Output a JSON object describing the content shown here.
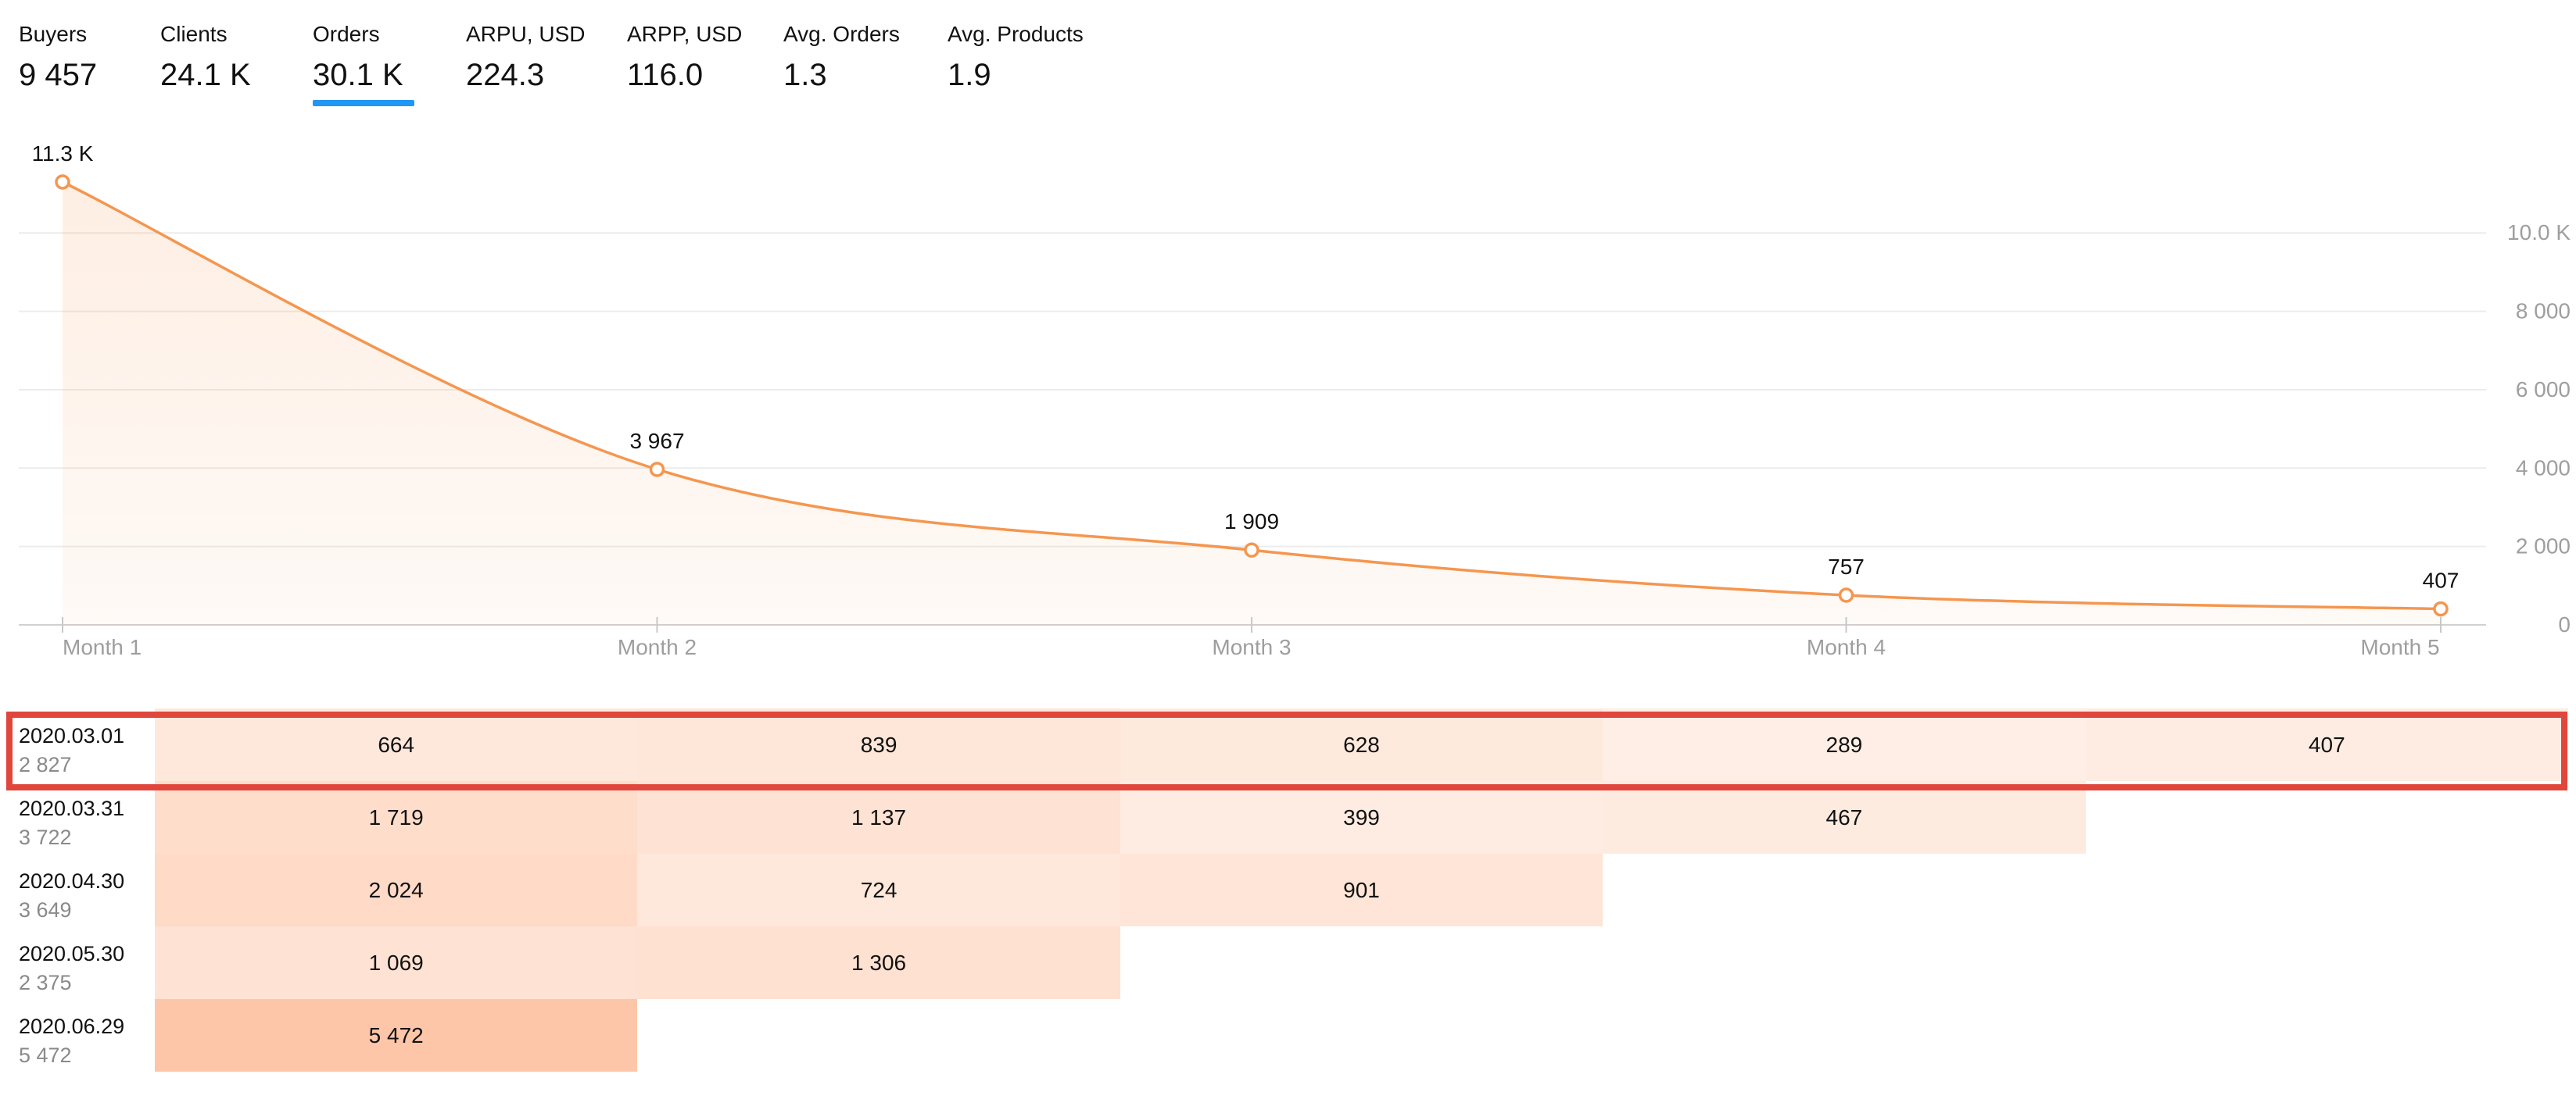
{
  "metrics": [
    {
      "label": "Buyers",
      "value": "9 457",
      "active": false
    },
    {
      "label": "Clients",
      "value": "24.1 K",
      "active": false
    },
    {
      "label": "Orders",
      "value": "30.1 K",
      "active": true
    },
    {
      "label": "ARPU, USD",
      "value": "224.3",
      "active": false
    },
    {
      "label": "ARPP, USD",
      "value": "116.0",
      "active": false
    },
    {
      "label": "Avg. Orders",
      "value": "1.3",
      "active": false
    },
    {
      "label": "Avg. Products",
      "value": "1.9",
      "active": false
    }
  ],
  "chart_data": {
    "type": "area",
    "categories": [
      "Month 1",
      "Month 2",
      "Month 3",
      "Month 4",
      "Month 5"
    ],
    "series": [
      {
        "values": [
          11300,
          3967,
          1909,
          757,
          407
        ],
        "labels": [
          "11.3 K",
          "3 967",
          "1 909",
          "757",
          "407"
        ],
        "color": "#f5964f"
      }
    ],
    "y_ticks": [
      0,
      2000,
      4000,
      6000,
      8000,
      10000
    ],
    "y_tick_labels": [
      "0",
      "2 000",
      "4 000",
      "6 000",
      "8 000",
      "10.0 K"
    ],
    "ylim": [
      0,
      11300
    ],
    "y_axis_side": "right",
    "grid": true,
    "title": "",
    "xlabel": "",
    "ylabel": ""
  },
  "cohorts": [
    {
      "date": "2020.03.01",
      "size": "2 827",
      "cells": [
        "664",
        "839",
        "628",
        "289",
        "407"
      ],
      "highlighted": true
    },
    {
      "date": "2020.03.31",
      "size": "3 722",
      "cells": [
        "1 719",
        "1 137",
        "399",
        "467"
      ],
      "highlighted": false
    },
    {
      "date": "2020.04.30",
      "size": "3 649",
      "cells": [
        "2 024",
        "724",
        "901"
      ],
      "highlighted": false
    },
    {
      "date": "2020.05.30",
      "size": "2 375",
      "cells": [
        "1 069",
        "1 306"
      ],
      "highlighted": false
    },
    {
      "date": "2020.06.29",
      "size": "5 472",
      "cells": [
        "5 472"
      ],
      "highlighted": false
    }
  ],
  "colors": {
    "accent": "#2196f3",
    "line": "#f5964f",
    "highlight_border": "#e0463b",
    "heat_base": "#fdc9a7"
  }
}
